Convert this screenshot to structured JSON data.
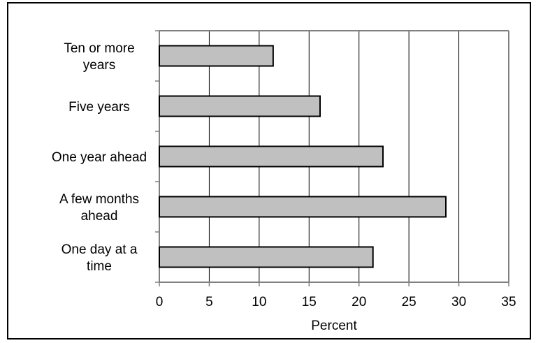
{
  "chart_data": {
    "type": "bar",
    "orientation": "horizontal",
    "categories": [
      [
        "Ten or more",
        "years"
      ],
      [
        "Five years"
      ],
      [
        "One year ahead"
      ],
      [
        "A few months",
        "ahead"
      ],
      [
        "One day at a",
        "time"
      ]
    ],
    "values": [
      11.4,
      16.1,
      22.4,
      28.7,
      21.4
    ],
    "title": "",
    "xlabel": "Percent",
    "ylabel": "",
    "xlim": [
      0,
      35
    ],
    "xticks": [
      0,
      5,
      10,
      15,
      20,
      25,
      30,
      35
    ],
    "grid": "vertical",
    "legend": "none",
    "colors": {
      "bar_fill": "#c0c0c0",
      "bar_stroke": "#000000",
      "gridline": "#000000",
      "axis": "#808080"
    }
  }
}
